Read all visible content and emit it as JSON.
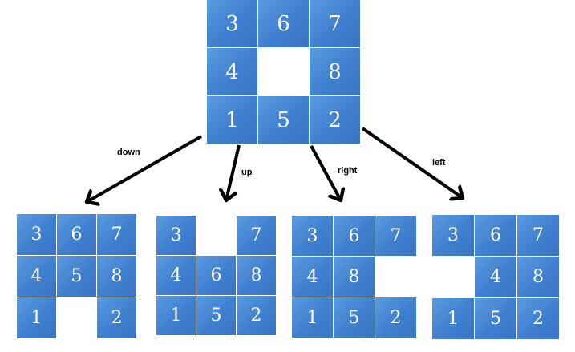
{
  "top_board": {
    "rows": [
      [
        "3",
        "6",
        "7"
      ],
      [
        "4",
        "",
        "8"
      ],
      [
        "1",
        "5",
        "2"
      ]
    ]
  },
  "moves": [
    {
      "label": "down",
      "rows": [
        [
          "3",
          "6",
          "7"
        ],
        [
          "4",
          "5",
          "8"
        ],
        [
          "1",
          "",
          "2"
        ]
      ]
    },
    {
      "label": "up",
      "rows": [
        [
          "3",
          "",
          "7"
        ],
        [
          "4",
          "6",
          "8"
        ],
        [
          "1",
          "5",
          "2"
        ]
      ]
    },
    {
      "label": "right",
      "rows": [
        [
          "3",
          "6",
          "7"
        ],
        [
          "4",
          "8",
          ""
        ],
        [
          "1",
          "5",
          "2"
        ]
      ]
    },
    {
      "label": "left",
      "rows": [
        [
          "3",
          "6",
          "7"
        ],
        [
          "",
          "4",
          "8"
        ],
        [
          "1",
          "5",
          "2"
        ]
      ]
    }
  ],
  "colors": {
    "tile": "#4a88d6",
    "arrow": "#000000"
  }
}
